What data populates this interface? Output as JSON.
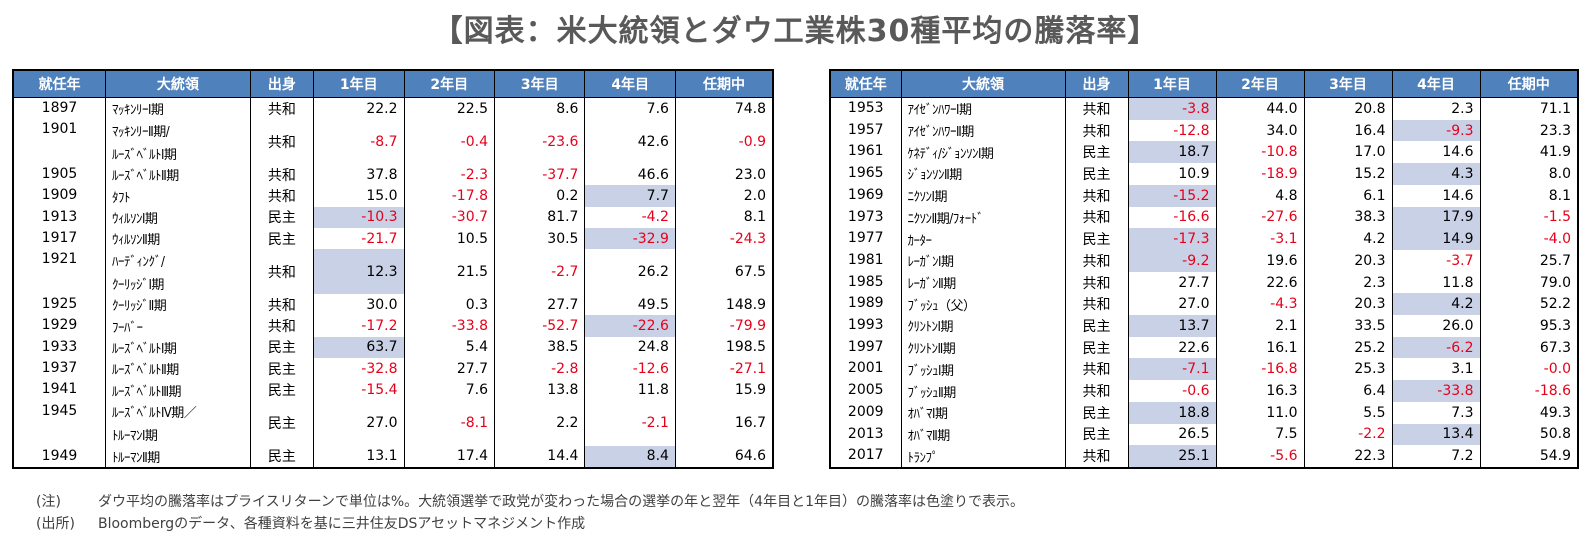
{
  "title": "【図表：米大統領とダウ工業株30種平均の騰落率】",
  "headers": [
    "就任年",
    "大統領",
    "出身",
    "1年目",
    "2年目",
    "3年目",
    "4年目",
    "任期中"
  ],
  "left_rows": [
    {
      "year": "1897",
      "name": [
        "ﾏｯｷﾝﾘｰⅠ期"
      ],
      "party": "共和",
      "v": [
        "22.2",
        "22.5",
        "8.6",
        "7.6",
        "74.8"
      ],
      "hl": [
        false,
        false,
        false,
        false,
        false
      ]
    },
    {
      "year": "1901",
      "name": [
        "ﾏｯｷﾝﾘｰⅡ期/",
        "ﾙｰｽﾞﾍﾞﾙﾄⅠ期"
      ],
      "party": "共和",
      "v": [
        "-8.7",
        "-0.4",
        "-23.6",
        "42.6",
        "-0.9"
      ],
      "hl": [
        false,
        false,
        false,
        false,
        false
      ]
    },
    {
      "year": "1905",
      "name": [
        "ﾙｰｽﾞﾍﾞﾙﾄⅡ期"
      ],
      "party": "共和",
      "v": [
        "37.8",
        "-2.3",
        "-37.7",
        "46.6",
        "23.0"
      ],
      "hl": [
        false,
        false,
        false,
        false,
        false
      ]
    },
    {
      "year": "1909",
      "name": [
        "ﾀﾌﾄ"
      ],
      "party": "共和",
      "v": [
        "15.0",
        "-17.8",
        "0.2",
        "7.7",
        "2.0"
      ],
      "hl": [
        false,
        false,
        false,
        true,
        false
      ]
    },
    {
      "year": "1913",
      "name": [
        "ｳｨﾙｿﾝⅠ期"
      ],
      "party": "民主",
      "v": [
        "-10.3",
        "-30.7",
        "81.7",
        "-4.2",
        "8.1"
      ],
      "hl": [
        true,
        false,
        false,
        false,
        false
      ]
    },
    {
      "year": "1917",
      "name": [
        "ｳｨﾙｿﾝⅡ期"
      ],
      "party": "民主",
      "v": [
        "-21.7",
        "10.5",
        "30.5",
        "-32.9",
        "-24.3"
      ],
      "hl": [
        false,
        false,
        false,
        true,
        false
      ]
    },
    {
      "year": "1921",
      "name": [
        "ﾊｰﾃﾞｨﾝｸﾞ/",
        "ｸｰﾘｯｼﾞⅠ期"
      ],
      "party": "共和",
      "v": [
        "12.3",
        "21.5",
        "-2.7",
        "26.2",
        "67.5"
      ],
      "hl": [
        true,
        false,
        false,
        false,
        false
      ]
    },
    {
      "year": "1925",
      "name": [
        "ｸｰﾘｯｼﾞⅡ期"
      ],
      "party": "共和",
      "v": [
        "30.0",
        "0.3",
        "27.7",
        "49.5",
        "148.9"
      ],
      "hl": [
        false,
        false,
        false,
        false,
        false
      ]
    },
    {
      "year": "1929",
      "name": [
        "ﾌｰﾊﾞｰ"
      ],
      "party": "共和",
      "v": [
        "-17.2",
        "-33.8",
        "-52.7",
        "-22.6",
        "-79.9"
      ],
      "hl": [
        false,
        false,
        false,
        true,
        false
      ]
    },
    {
      "year": "1933",
      "name": [
        "ﾙｰｽﾞﾍﾞﾙﾄⅠ期"
      ],
      "party": "民主",
      "v": [
        "63.7",
        "5.4",
        "38.5",
        "24.8",
        "198.5"
      ],
      "hl": [
        true,
        false,
        false,
        false,
        false
      ]
    },
    {
      "year": "1937",
      "name": [
        "ﾙｰｽﾞﾍﾞﾙﾄⅡ期"
      ],
      "party": "民主",
      "v": [
        "-32.8",
        "27.7",
        "-2.8",
        "-12.6",
        "-27.1"
      ],
      "hl": [
        false,
        false,
        false,
        false,
        false
      ]
    },
    {
      "year": "1941",
      "name": [
        "ﾙｰｽﾞﾍﾞﾙﾄⅢ期"
      ],
      "party": "民主",
      "v": [
        "-15.4",
        "7.6",
        "13.8",
        "11.8",
        "15.9"
      ],
      "hl": [
        false,
        false,
        false,
        false,
        false
      ]
    },
    {
      "year": "1945",
      "name": [
        "ﾙｰｽﾞﾍﾞﾙﾄⅣ期／",
        "ﾄﾙｰﾏﾝⅠ期"
      ],
      "party": "民主",
      "v": [
        "27.0",
        "-8.1",
        "2.2",
        "-2.1",
        "16.7"
      ],
      "hl": [
        false,
        false,
        false,
        false,
        false
      ]
    },
    {
      "year": "1949",
      "name": [
        "ﾄﾙｰﾏﾝⅡ期"
      ],
      "party": "民主",
      "v": [
        "13.1",
        "17.4",
        "14.4",
        "8.4",
        "64.6"
      ],
      "hl": [
        false,
        false,
        false,
        true,
        false
      ]
    }
  ],
  "right_rows": [
    {
      "year": "1953",
      "name": [
        "ｱｲｾﾞﾝﾊﾜｰⅠ期"
      ],
      "party": "共和",
      "v": [
        "-3.8",
        "44.0",
        "20.8",
        "2.3",
        "71.1"
      ],
      "hl": [
        true,
        false,
        false,
        false,
        false
      ]
    },
    {
      "year": "1957",
      "name": [
        "ｱｲｾﾞﾝﾊﾜｰⅡ期"
      ],
      "party": "共和",
      "v": [
        "-12.8",
        "34.0",
        "16.4",
        "-9.3",
        "23.3"
      ],
      "hl": [
        false,
        false,
        false,
        true,
        false
      ]
    },
    {
      "year": "1961",
      "name": [
        "ｹﾈﾃﾞｨ/ｼﾞｮﾝｿﾝⅠ期"
      ],
      "party": "民主",
      "v": [
        "18.7",
        "-10.8",
        "17.0",
        "14.6",
        "41.9"
      ],
      "hl": [
        true,
        false,
        false,
        false,
        false
      ]
    },
    {
      "year": "1965",
      "name": [
        "ｼﾞｮﾝｿﾝⅡ期"
      ],
      "party": "民主",
      "v": [
        "10.9",
        "-18.9",
        "15.2",
        "4.3",
        "8.0"
      ],
      "hl": [
        false,
        false,
        false,
        true,
        false
      ]
    },
    {
      "year": "1969",
      "name": [
        "ﾆｸｿﾝⅠ期"
      ],
      "party": "共和",
      "v": [
        "-15.2",
        "4.8",
        "6.1",
        "14.6",
        "8.1"
      ],
      "hl": [
        true,
        false,
        false,
        false,
        false
      ]
    },
    {
      "year": "1973",
      "name": [
        "ﾆｸｿﾝⅡ期/ﾌｫｰﾄﾞ"
      ],
      "party": "共和",
      "v": [
        "-16.6",
        "-27.6",
        "38.3",
        "17.9",
        "-1.5"
      ],
      "hl": [
        false,
        false,
        false,
        true,
        false
      ]
    },
    {
      "year": "1977",
      "name": [
        "ｶｰﾀｰ"
      ],
      "party": "民主",
      "v": [
        "-17.3",
        "-3.1",
        "4.2",
        "14.9",
        "-4.0"
      ],
      "hl": [
        true,
        false,
        false,
        true,
        false
      ]
    },
    {
      "year": "1981",
      "name": [
        "ﾚｰｶﾞﾝⅠ期"
      ],
      "party": "共和",
      "v": [
        "-9.2",
        "19.6",
        "20.3",
        "-3.7",
        "25.7"
      ],
      "hl": [
        true,
        false,
        false,
        false,
        false
      ]
    },
    {
      "year": "1985",
      "name": [
        "ﾚｰｶﾞﾝⅡ期"
      ],
      "party": "共和",
      "v": [
        "27.7",
        "22.6",
        "2.3",
        "11.8",
        "79.0"
      ],
      "hl": [
        false,
        false,
        false,
        false,
        false
      ]
    },
    {
      "year": "1989",
      "name": [
        "ﾌﾞｯｼｭ（父）"
      ],
      "party": "共和",
      "v": [
        "27.0",
        "-4.3",
        "20.3",
        "4.2",
        "52.2"
      ],
      "hl": [
        false,
        false,
        false,
        true,
        false
      ]
    },
    {
      "year": "1993",
      "name": [
        "ｸﾘﾝﾄﾝⅠ期"
      ],
      "party": "民主",
      "v": [
        "13.7",
        "2.1",
        "33.5",
        "26.0",
        "95.3"
      ],
      "hl": [
        true,
        false,
        false,
        false,
        false
      ]
    },
    {
      "year": "1997",
      "name": [
        "ｸﾘﾝﾄﾝⅡ期"
      ],
      "party": "民主",
      "v": [
        "22.6",
        "16.1",
        "25.2",
        "-6.2",
        "67.3"
      ],
      "hl": [
        false,
        false,
        false,
        true,
        false
      ]
    },
    {
      "year": "2001",
      "name": [
        "ﾌﾞｯｼｭⅠ期"
      ],
      "party": "共和",
      "v": [
        "-7.1",
        "-16.8",
        "25.3",
        "3.1",
        "-0.0"
      ],
      "hl": [
        true,
        false,
        false,
        false,
        false
      ]
    },
    {
      "year": "2005",
      "name": [
        "ﾌﾞｯｼｭⅡ期"
      ],
      "party": "共和",
      "v": [
        "-0.6",
        "16.3",
        "6.4",
        "-33.8",
        "-18.6"
      ],
      "hl": [
        false,
        false,
        false,
        true,
        false
      ]
    },
    {
      "year": "2009",
      "name": [
        "ｵﾊﾞﾏⅠ期"
      ],
      "party": "民主",
      "v": [
        "18.8",
        "11.0",
        "5.5",
        "7.3",
        "49.3"
      ],
      "hl": [
        true,
        false,
        false,
        false,
        false
      ]
    },
    {
      "year": "2013",
      "name": [
        "ｵﾊﾞﾏⅡ期"
      ],
      "party": "民主",
      "v": [
        "26.5",
        "7.5",
        "-2.2",
        "13.4",
        "50.8"
      ],
      "hl": [
        false,
        false,
        false,
        true,
        false
      ]
    },
    {
      "year": "2017",
      "name": [
        "ﾄﾗﾝﾌﾟ"
      ],
      "party": "共和",
      "v": [
        "25.1",
        "-5.6",
        "22.3",
        "7.2",
        "54.9"
      ],
      "hl": [
        true,
        false,
        false,
        false,
        false
      ]
    }
  ],
  "note": {
    "label": "(注)",
    "text": "ダウ平均の騰落率はプライスリターンで単位は%。大統領選挙で政党が変わった場合の選挙の年と翌年（4年目と1年目）の騰落率は色塗りで表示。"
  },
  "source": {
    "label": "(出所)",
    "text": "Bloombergのデータ、各種資料を基に三井住友DSアセットマネジメント作成"
  },
  "colors": {
    "header_bg": "#4f81bd",
    "highlight": "#c9d1e6",
    "negative": "#e6001a",
    "title": "#595959"
  }
}
